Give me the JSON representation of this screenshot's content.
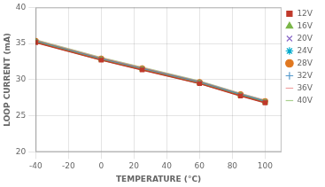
{
  "chart_data": {
    "type": "line",
    "xlabel": "TEMPERATURE (°C)",
    "ylabel": "LOOP CURRENT (mA)",
    "x": [
      -40,
      0,
      25,
      60,
      85,
      100
    ],
    "xlim": [
      -40,
      110
    ],
    "ylim": [
      20,
      40
    ],
    "xticks": [
      -40,
      -20,
      0,
      20,
      40,
      60,
      80,
      100
    ],
    "yticks": [
      20,
      25,
      30,
      35,
      40
    ],
    "grid": true,
    "legend": "right",
    "series": [
      {
        "name": "12V",
        "color": "#c0392b",
        "marker": "square",
        "line_style": "solid",
        "values": [
          35.15,
          32.7,
          31.35,
          29.45,
          27.75,
          26.8
        ]
      },
      {
        "name": "16V",
        "color": "#7ab648",
        "marker": "triangle",
        "line_style": "solid",
        "values": [
          35.2,
          32.75,
          31.4,
          29.5,
          27.8,
          26.85
        ]
      },
      {
        "name": "20V",
        "color": "#8b6bc8",
        "marker": "x",
        "line_style": "solid",
        "values": [
          35.25,
          32.8,
          31.45,
          29.55,
          27.85,
          26.9
        ]
      },
      {
        "name": "24V",
        "color": "#00aacc",
        "marker": "star",
        "line_style": "solid",
        "values": [
          35.3,
          32.85,
          31.5,
          29.6,
          27.9,
          26.95
        ]
      },
      {
        "name": "28V",
        "color": "#e07820",
        "marker": "circle",
        "line_style": "solid",
        "values": [
          35.35,
          32.9,
          31.55,
          29.65,
          27.95,
          27.0
        ]
      },
      {
        "name": "32V",
        "color": "#5599cc",
        "marker": "plus",
        "line_style": "solid",
        "values": [
          35.4,
          32.95,
          31.6,
          29.7,
          28.0,
          27.05
        ]
      },
      {
        "name": "36V",
        "color": "#f0a0a0",
        "marker": "none",
        "line_style": "solid",
        "values": [
          35.45,
          33.0,
          31.65,
          29.75,
          28.05,
          27.1
        ]
      },
      {
        "name": "40V",
        "color": "#a8d08d",
        "marker": "none",
        "line_style": "solid",
        "values": [
          35.5,
          33.05,
          31.7,
          29.8,
          28.1,
          27.15
        ]
      }
    ]
  }
}
